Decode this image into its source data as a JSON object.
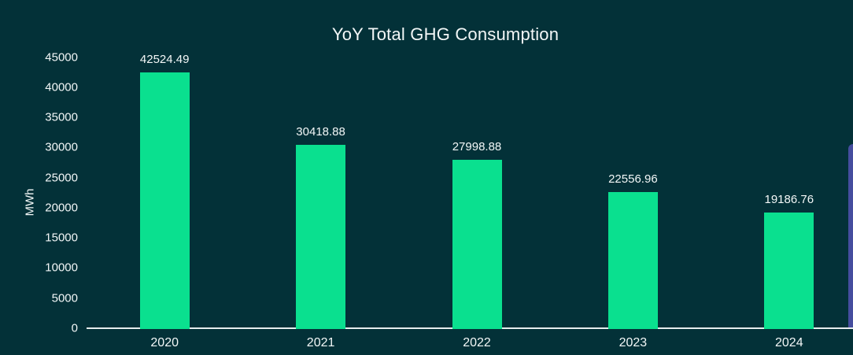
{
  "chart_data": {
    "type": "bar",
    "title": "YoY Total GHG Consumption",
    "ylabel": "MWh",
    "xlabel": "",
    "categories": [
      "2020",
      "2021",
      "2022",
      "2023",
      "2024"
    ],
    "values": [
      42524.49,
      30418.88,
      27998.88,
      22556.96,
      19186.76
    ],
    "value_labels": [
      "42524.49",
      "30418.88",
      "27998.88",
      "22556.96",
      "19186.76"
    ],
    "ylim": [
      0,
      45000
    ],
    "ytick_labels": [
      "0",
      "5000",
      "10000",
      "15000",
      "20000",
      "25000",
      "30000",
      "35000",
      "40000",
      "45000"
    ],
    "grid": false,
    "legend": "none",
    "colors": {
      "background": "#033138",
      "bar": "#0ae08f",
      "text": "#f3f7f7",
      "axis_line": "#e6eded",
      "adjacent_card_edge": "#454d9e"
    }
  }
}
